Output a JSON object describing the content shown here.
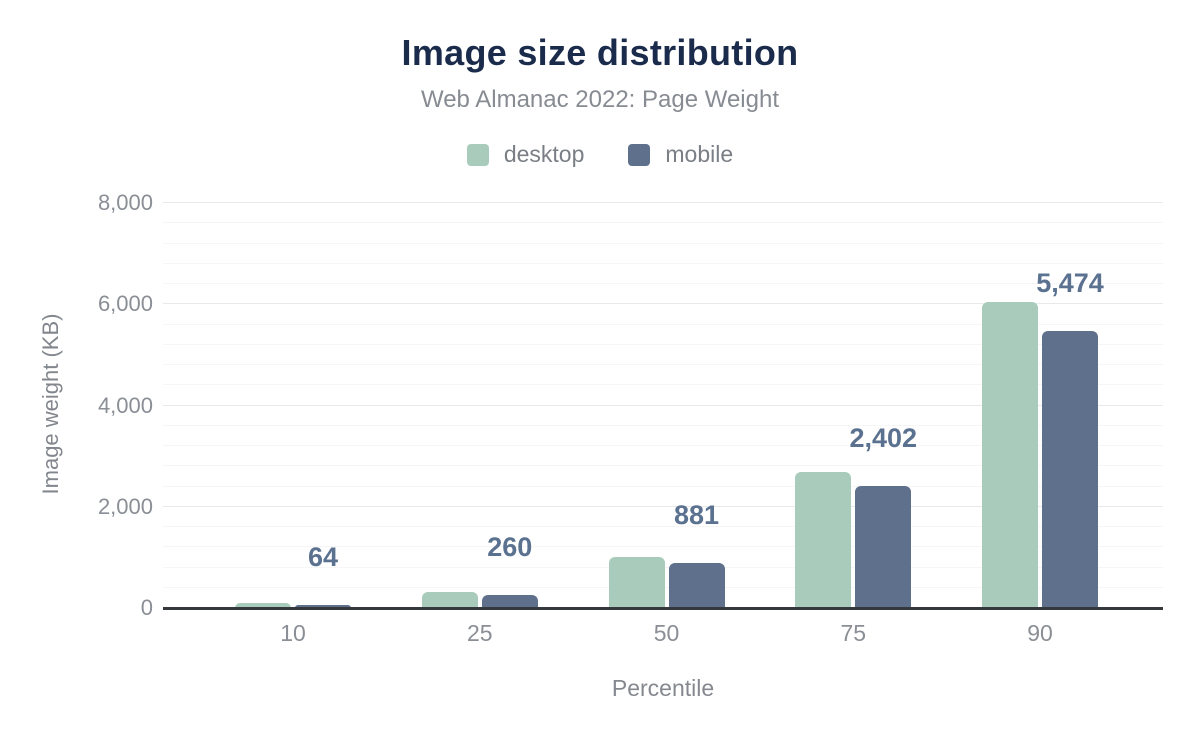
{
  "header": {
    "title": "Image size distribution",
    "subtitle": "Web Almanac 2022: Page Weight"
  },
  "chart_data": {
    "type": "bar",
    "title": "Image size distribution",
    "subtitle": "Web Almanac 2022: Page Weight",
    "categories": [
      "10",
      "25",
      "50",
      "75",
      "90"
    ],
    "series": [
      {
        "name": "desktop",
        "color": "#a9cbbc",
        "values": [
          95,
          320,
          1000,
          2680,
          6050
        ],
        "values_estimated_from_gridlines": true
      },
      {
        "name": "mobile",
        "color": "#5f708c",
        "values": [
          64,
          260,
          881,
          2402,
          5474
        ],
        "data_labels": [
          "64",
          "260",
          "881",
          "2,402",
          "5,474"
        ]
      }
    ],
    "xlabel": "Percentile",
    "ylabel": "Image weight (KB)",
    "ylim": [
      0,
      8000
    ],
    "yticks": [
      0,
      2000,
      4000,
      6000,
      8000
    ],
    "ytick_labels": [
      "0",
      "2,000",
      "4,000",
      "6,000",
      "8,000"
    ],
    "minor_grid_step": 400,
    "grid": "horizontal-only",
    "legend_position": "top-center",
    "data_labels_on": "mobile"
  },
  "colors": {
    "title": "#1b2b4b",
    "subtitle": "#878b92",
    "axis_line": "#35393e",
    "tick_label": "#8a8e95",
    "value_label": "#5b7190",
    "desktop_bar": "#a9cbbc",
    "mobile_bar": "#5f708c",
    "grid_major": "#e9e9e9",
    "grid_minor": "#f6f6f6",
    "background": "#ffffff"
  }
}
